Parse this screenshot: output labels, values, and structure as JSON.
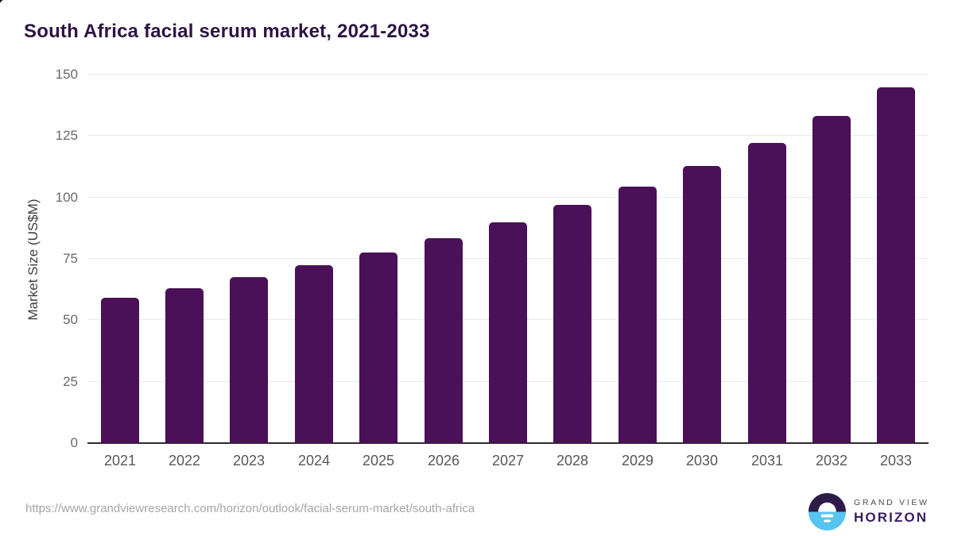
{
  "title": "South Africa facial serum market, 2021-2033",
  "chart_data": {
    "type": "bar",
    "title": "South Africa facial serum market, 2021-2033",
    "categories": [
      "2021",
      "2022",
      "2023",
      "2024",
      "2025",
      "2026",
      "2027",
      "2028",
      "2029",
      "2030",
      "2031",
      "2032",
      "2033"
    ],
    "values": [
      59,
      63.2,
      67.6,
      72.5,
      77.6,
      83.3,
      90,
      96.9,
      104.5,
      112.8,
      122.3,
      133.2,
      144.7
    ],
    "xlabel": "",
    "ylabel": "Market Size (US$M)",
    "ylim": [
      0,
      150
    ],
    "yticks": [
      0,
      25,
      50,
      75,
      100,
      125,
      150
    ],
    "grid": true,
    "legend": "none",
    "bar_color": "#4a1058"
  },
  "colors": {
    "title_text": "#2d1445",
    "bar": "#4a1058",
    "gridline": "#e9e9e9",
    "axis_line": "#2e2e2e",
    "y_tick_text": "#696969",
    "x_tick_text": "#57575a",
    "url_text": "#a6a6a6",
    "logo_purple": "#2d1b49",
    "logo_blue": "#58c4f0",
    "logo_wordmark": "#3a1d5e"
  },
  "footer": {
    "source_url": "https://www.grandviewresearch.com/horizon/outlook/facial-serum-market/south-africa",
    "logo": {
      "icon": "horizon-sun-icon",
      "brand_top": "GRAND VIEW",
      "brand_bottom": "HORIZON"
    }
  }
}
